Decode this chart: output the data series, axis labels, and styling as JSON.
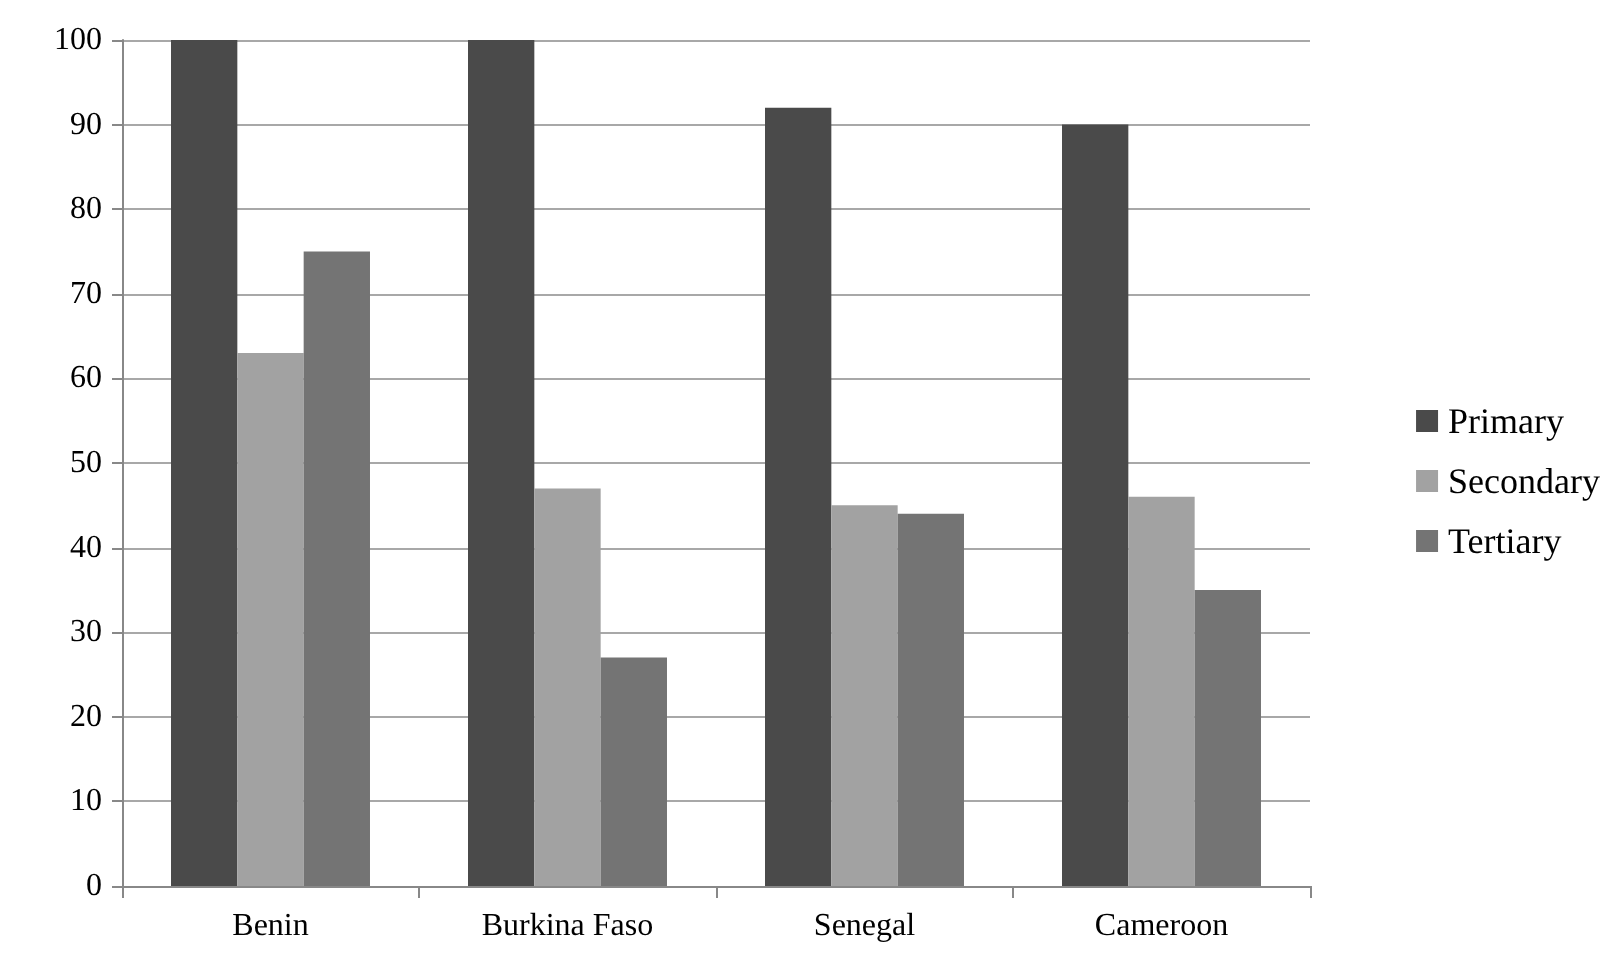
{
  "chart_data": {
    "type": "bar",
    "categories": [
      "Benin",
      "Burkina Faso",
      "Senegal",
      "Cameroon"
    ],
    "series": [
      {
        "name": "Primary",
        "color": "#4a4a4a",
        "values": [
          100,
          100,
          92,
          90
        ]
      },
      {
        "name": "Secondary",
        "color": "#a2a2a2",
        "values": [
          63,
          47,
          45,
          46
        ]
      },
      {
        "name": "Tertiary",
        "color": "#747474",
        "values": [
          75,
          27,
          44,
          35
        ]
      }
    ],
    "ylim": [
      0,
      100
    ],
    "yticks": [
      0,
      10,
      20,
      30,
      40,
      50,
      60,
      70,
      80,
      90,
      100
    ],
    "grid": "y",
    "legend": "right"
  }
}
